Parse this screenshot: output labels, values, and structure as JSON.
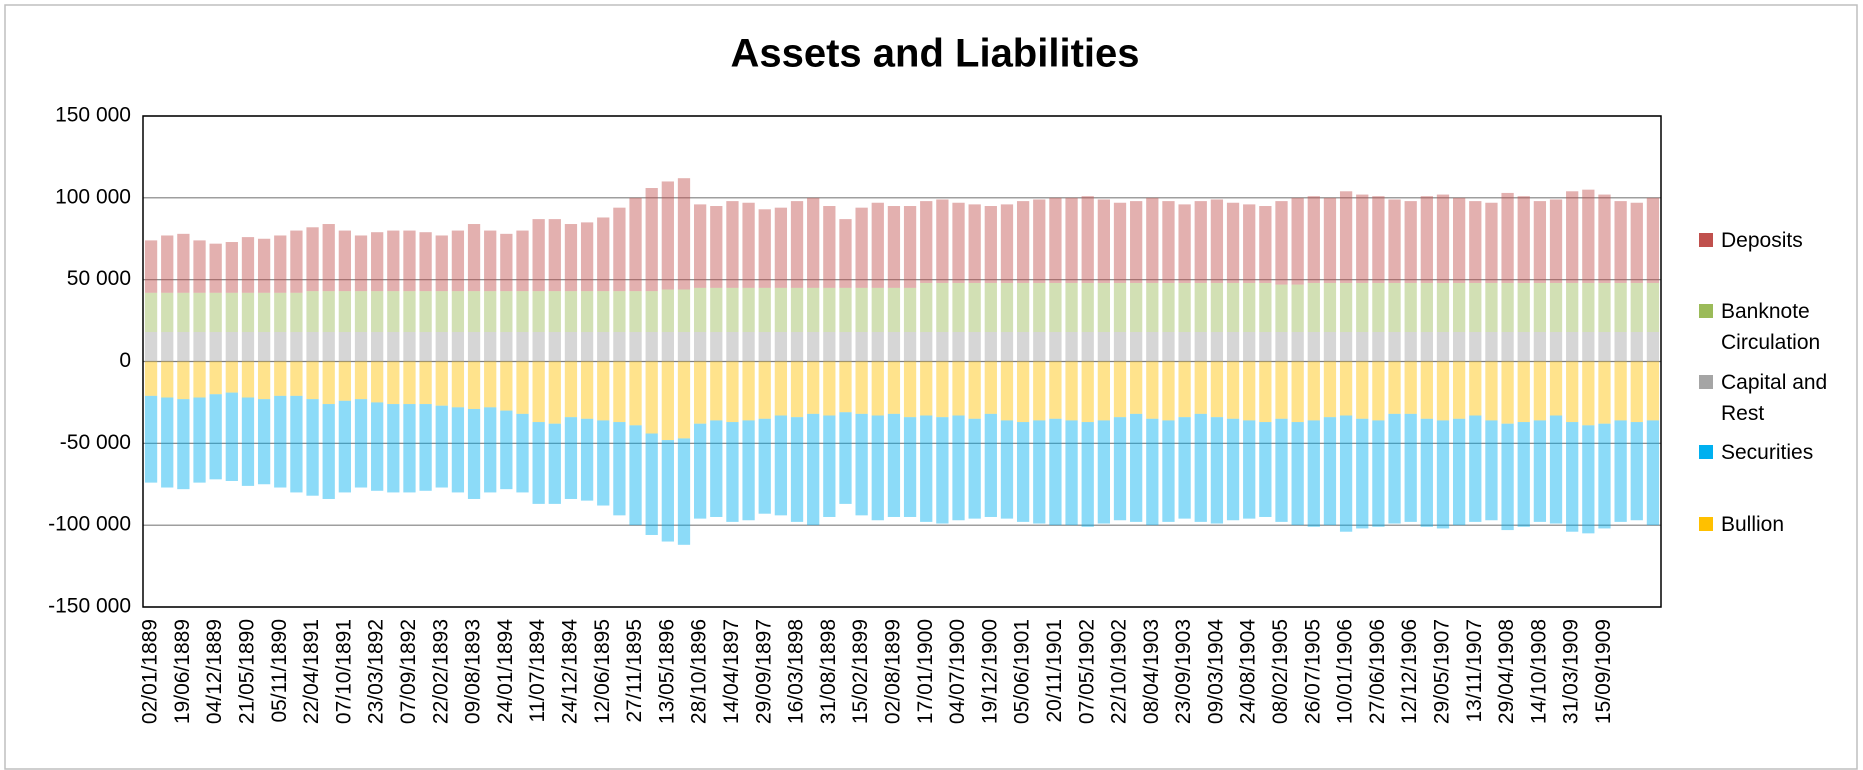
{
  "chart_data": {
    "type": "stacked_bar",
    "title": "Assets and Liabilities",
    "categories": [
      "02/01/1889",
      null,
      "19/06/1889",
      null,
      "04/12/1889",
      null,
      "21/05/1890",
      null,
      "05/11/1890",
      null,
      "22/04/1891",
      null,
      "07/10/1891",
      null,
      "23/03/1892",
      null,
      "07/09/1892",
      null,
      "22/02/1893",
      null,
      "09/08/1893",
      null,
      "24/01/1894",
      null,
      "11/07/1894",
      null,
      "24/12/1894",
      null,
      "12/06/1895",
      null,
      "27/11/1895",
      null,
      "13/05/1896",
      null,
      "28/10/1896",
      null,
      "14/04/1897",
      null,
      "29/09/1897",
      null,
      "16/03/1898",
      null,
      "31/08/1898",
      null,
      "15/02/1899",
      null,
      "02/08/1899",
      null,
      "17/01/1900",
      null,
      "04/07/1900",
      null,
      "19/12/1900",
      null,
      "05/06/1901",
      null,
      "20/11/1901",
      null,
      "07/05/1902",
      null,
      "22/10/1902",
      null,
      "08/04/1903",
      null,
      "23/09/1903",
      null,
      "09/03/1904",
      null,
      "24/08/1904",
      null,
      "08/02/1905",
      null,
      "26/07/1905",
      null,
      "10/01/1906",
      null,
      "27/06/1906",
      null,
      "12/12/1906",
      null,
      "29/05/1907",
      null,
      "13/11/1907",
      null,
      "29/04/1908",
      null,
      "14/10/1908",
      null,
      "31/03/1909",
      null,
      "15/09/1909",
      null,
      null,
      null
    ],
    "series": [
      {
        "name": "Deposits",
        "color": "#c0504d",
        "values": [
          32000,
          35000,
          36000,
          32000,
          30000,
          31000,
          34000,
          33000,
          35000,
          38000,
          39000,
          41000,
          37000,
          34000,
          36000,
          37000,
          37000,
          36000,
          34000,
          37000,
          41000,
          37000,
          35000,
          37000,
          44000,
          44000,
          41000,
          42000,
          45000,
          51000,
          57000,
          63000,
          66000,
          68000,
          51000,
          50000,
          53000,
          52000,
          48000,
          49000,
          53000,
          55000,
          50000,
          42000,
          49000,
          52000,
          50000,
          50000,
          50000,
          51000,
          49000,
          48000,
          47000,
          48000,
          50000,
          51000,
          52000,
          52000,
          53000,
          51000,
          49000,
          50000,
          52000,
          50000,
          48000,
          50000,
          51000,
          49000,
          48000,
          47000,
          51000,
          53000,
          53000,
          52000,
          56000,
          54000,
          53000,
          51000,
          50000,
          53000,
          54000,
          52000,
          50000,
          49000,
          55000,
          53000,
          50000,
          51000,
          56000,
          57000,
          54000,
          50000,
          49000,
          52000
        ]
      },
      {
        "name": "Banknote Circulation",
        "color": "#9bbb59",
        "values": [
          24000,
          24000,
          24000,
          24000,
          24000,
          24000,
          24000,
          24000,
          24000,
          24000,
          25000,
          25000,
          25000,
          25000,
          25000,
          25000,
          25000,
          25000,
          25000,
          25000,
          25000,
          25000,
          25000,
          25000,
          25000,
          25000,
          25000,
          25000,
          25000,
          25000,
          25000,
          25000,
          26000,
          26000,
          27000,
          27000,
          27000,
          27000,
          27000,
          27000,
          27000,
          27000,
          27000,
          27000,
          27000,
          27000,
          27000,
          27000,
          30000,
          30000,
          30000,
          30000,
          30000,
          30000,
          30000,
          30000,
          30000,
          30000,
          30000,
          30000,
          30000,
          30000,
          30000,
          30000,
          30000,
          30000,
          30000,
          30000,
          30000,
          30000,
          29000,
          29000,
          30000,
          30000,
          30000,
          30000,
          30000,
          30000,
          30000,
          30000,
          30000,
          30000,
          30000,
          30000,
          30000,
          30000,
          30000,
          30000,
          30000,
          30000,
          30000,
          30000,
          30000,
          30000
        ]
      },
      {
        "name": "Capital and Rest",
        "color": "#a5a5a5",
        "values": [
          18000,
          18000,
          18000,
          18000,
          18000,
          18000,
          18000,
          18000,
          18000,
          18000,
          18000,
          18000,
          18000,
          18000,
          18000,
          18000,
          18000,
          18000,
          18000,
          18000,
          18000,
          18000,
          18000,
          18000,
          18000,
          18000,
          18000,
          18000,
          18000,
          18000,
          18000,
          18000,
          18000,
          18000,
          18000,
          18000,
          18000,
          18000,
          18000,
          18000,
          18000,
          18000,
          18000,
          18000,
          18000,
          18000,
          18000,
          18000,
          18000,
          18000,
          18000,
          18000,
          18000,
          18000,
          18000,
          18000,
          18000,
          18000,
          18000,
          18000,
          18000,
          18000,
          18000,
          18000,
          18000,
          18000,
          18000,
          18000,
          18000,
          18000,
          18000,
          18000,
          18000,
          18000,
          18000,
          18000,
          18000,
          18000,
          18000,
          18000,
          18000,
          18000,
          18000,
          18000,
          18000,
          18000,
          18000,
          18000,
          18000,
          18000,
          18000,
          18000,
          18000,
          18000
        ]
      },
      {
        "name": "Securities",
        "color": "#00b0f0",
        "values": [
          -53000,
          -55000,
          -55000,
          -52000,
          -52000,
          -54000,
          -54000,
          -52000,
          -56000,
          -59000,
          -59000,
          -58000,
          -56000,
          -54000,
          -54000,
          -54000,
          -54000,
          -53000,
          -50000,
          -52000,
          -55000,
          -52000,
          -48000,
          -48000,
          -50000,
          -49000,
          -50000,
          -50000,
          -52000,
          -57000,
          -61000,
          -62000,
          -62000,
          -65000,
          -58000,
          -59000,
          -61000,
          -61000,
          -58000,
          -61000,
          -64000,
          -68000,
          -62000,
          -56000,
          -62000,
          -64000,
          -63000,
          -61000,
          -65000,
          -65000,
          -64000,
          -61000,
          -63000,
          -60000,
          -61000,
          -63000,
          -65000,
          -64000,
          -64000,
          -63000,
          -63000,
          -66000,
          -65000,
          -62000,
          -62000,
          -66000,
          -65000,
          -62000,
          -60000,
          -58000,
          -63000,
          -63000,
          -65000,
          -66000,
          -71000,
          -67000,
          -65000,
          -67000,
          -66000,
          -66000,
          -66000,
          -65000,
          -65000,
          -61000,
          -65000,
          -64000,
          -62000,
          -66000,
          -67000,
          -66000,
          -64000,
          -62000,
          -60000,
          -64000
        ]
      },
      {
        "name": "Bullion",
        "color": "#ffc000",
        "values": [
          -21000,
          -22000,
          -23000,
          -22000,
          -20000,
          -19000,
          -22000,
          -23000,
          -21000,
          -21000,
          -23000,
          -26000,
          -24000,
          -23000,
          -25000,
          -26000,
          -26000,
          -26000,
          -27000,
          -28000,
          -29000,
          -28000,
          -30000,
          -32000,
          -37000,
          -38000,
          -34000,
          -35000,
          -36000,
          -37000,
          -39000,
          -44000,
          -48000,
          -47000,
          -38000,
          -36000,
          -37000,
          -36000,
          -35000,
          -33000,
          -34000,
          -32000,
          -33000,
          -31000,
          -32000,
          -33000,
          -32000,
          -34000,
          -33000,
          -34000,
          -33000,
          -35000,
          -32000,
          -36000,
          -37000,
          -36000,
          -35000,
          -36000,
          -37000,
          -36000,
          -34000,
          -32000,
          -35000,
          -36000,
          -34000,
          -32000,
          -34000,
          -35000,
          -36000,
          -37000,
          -35000,
          -37000,
          -36000,
          -34000,
          -33000,
          -35000,
          -36000,
          -32000,
          -32000,
          -35000,
          -36000,
          -35000,
          -33000,
          -36000,
          -38000,
          -37000,
          -36000,
          -33000,
          -37000,
          -39000,
          -38000,
          -36000,
          -37000,
          -36000
        ]
      }
    ],
    "ylim": [
      -150000,
      150000
    ],
    "yticks": [
      {
        "value": -150000,
        "label": "-150 000"
      },
      {
        "value": -100000,
        "label": "-100 000"
      },
      {
        "value": -50000,
        "label": "-50 000"
      },
      0,
      {
        "value": 50000,
        "label": "50 000"
      },
      {
        "value": 100000,
        "label": "100 000"
      },
      {
        "value": 150000,
        "label": "150 000"
      }
    ],
    "grid": true,
    "legend": "right"
  }
}
